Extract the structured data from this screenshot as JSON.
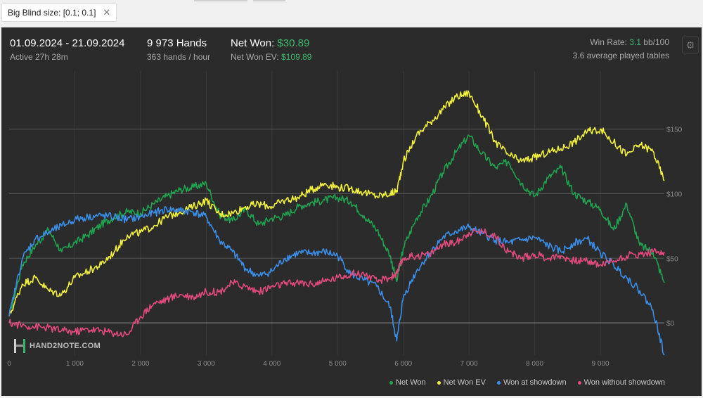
{
  "filter": {
    "chip_label": "Big Blind size: [0.1; 0.1]",
    "close_symbol": "✕"
  },
  "header": {
    "date_range": "01.09.2024 - 21.09.2024",
    "active": "Active 27h 28m",
    "hands": "9 973 Hands",
    "hands_per_hour": "363 hands / hour",
    "net_won_label": "Net Won:",
    "net_won_value": "$30.89",
    "net_won_ev_label": "Net Won  EV:",
    "net_won_ev_value": "$109.89",
    "win_rate_label": "Win Rate:",
    "win_rate_value": "3.1",
    "win_rate_unit": "bb/100",
    "tables": "3.6 average played tables"
  },
  "logo_text": "HAND2NOTE.COM",
  "icons": {
    "settings": "gear-icon",
    "close": "close-icon"
  },
  "colors": {
    "net_won": "#1fa24f",
    "net_won_ev": "#f2f23a",
    "won_at_showdown": "#3a8ee8",
    "won_without_showdown": "#e04a7c",
    "green_text": "#3db870"
  },
  "chart_data": {
    "type": "line",
    "xlim": [
      0,
      9973
    ],
    "ylim": [
      -25,
      195
    ],
    "x_ticks": [
      0,
      1000,
      2000,
      3000,
      4000,
      5000,
      6000,
      7000,
      8000,
      9000
    ],
    "x_tick_labels": [
      "0",
      "1 000",
      "2 000",
      "3 000",
      "4 000",
      "5 000",
      "6 000",
      "7 000",
      "8 000",
      "9 000"
    ],
    "y_ticks": [
      0,
      50,
      100,
      150
    ],
    "y_tick_labels": [
      "$0",
      "$50",
      "$100",
      "$150"
    ],
    "grid": true,
    "legend_position": "bottom-right",
    "series": [
      {
        "name": "Net Won",
        "key": "net_won",
        "x": [
          0,
          200,
          400,
          600,
          800,
          1000,
          1200,
          1400,
          1600,
          1800,
          2000,
          2200,
          2400,
          2600,
          2800,
          3000,
          3200,
          3400,
          3600,
          3800,
          4000,
          4200,
          4400,
          4600,
          4800,
          5000,
          5200,
          5400,
          5600,
          5800,
          5900,
          6000,
          6200,
          6400,
          6600,
          6800,
          7000,
          7200,
          7400,
          7600,
          7800,
          8000,
          8200,
          8400,
          8600,
          8800,
          9000,
          9200,
          9400,
          9600,
          9800,
          9973
        ],
        "values": [
          5,
          45,
          60,
          72,
          55,
          62,
          68,
          76,
          82,
          86,
          85,
          92,
          98,
          103,
          105,
          108,
          84,
          79,
          88,
          76,
          81,
          83,
          90,
          93,
          95,
          97,
          94,
          83,
          72,
          52,
          32,
          58,
          81,
          96,
          116,
          132,
          145,
          131,
          120,
          125,
          108,
          98,
          112,
          120,
          100,
          94,
          88,
          72,
          92,
          60,
          55,
          31
        ]
      },
      {
        "name": "Net Won  EV",
        "key": "net_won_ev",
        "x": [
          0,
          200,
          400,
          600,
          800,
          1000,
          1200,
          1400,
          1600,
          1800,
          2000,
          2200,
          2400,
          2600,
          2800,
          3000,
          3200,
          3400,
          3600,
          3800,
          4000,
          4200,
          4400,
          4600,
          4800,
          5000,
          5200,
          5400,
          5600,
          5800,
          5900,
          6000,
          6200,
          6400,
          6600,
          6800,
          7000,
          7200,
          7400,
          7600,
          7800,
          8000,
          8200,
          8400,
          8600,
          8800,
          9000,
          9200,
          9400,
          9600,
          9800,
          9973
        ],
        "values": [
          5,
          30,
          35,
          25,
          22,
          35,
          40,
          45,
          55,
          68,
          70,
          75,
          82,
          86,
          90,
          95,
          84,
          85,
          90,
          92,
          90,
          95,
          97,
          103,
          108,
          105,
          104,
          101,
          98,
          100,
          102,
          125,
          145,
          155,
          165,
          175,
          178,
          160,
          140,
          130,
          125,
          128,
          132,
          135,
          140,
          148,
          150,
          140,
          130,
          138,
          133,
          110
        ]
      },
      {
        "name": "Won at showdown",
        "key": "won_at_showdown",
        "x": [
          0,
          200,
          400,
          600,
          800,
          1000,
          1200,
          1400,
          1600,
          1800,
          2000,
          2200,
          2400,
          2600,
          2800,
          3000,
          3200,
          3400,
          3600,
          3800,
          4000,
          4200,
          4400,
          4600,
          4800,
          5000,
          5200,
          5400,
          5600,
          5800,
          5900,
          6000,
          6200,
          6400,
          6600,
          6800,
          7000,
          7200,
          7400,
          7600,
          7800,
          8000,
          8200,
          8400,
          8600,
          8800,
          9000,
          9200,
          9400,
          9600,
          9800,
          9973
        ],
        "values": [
          5,
          50,
          65,
          70,
          75,
          80,
          82,
          83,
          82,
          80,
          82,
          85,
          88,
          87,
          86,
          82,
          64,
          55,
          42,
          36,
          40,
          50,
          54,
          54,
          55,
          52,
          38,
          33,
          28,
          12,
          -14,
          20,
          40,
          54,
          66,
          71,
          74,
          69,
          64,
          62,
          64,
          66,
          60,
          55,
          62,
          65,
          54,
          45,
          35,
          25,
          10,
          -25
        ]
      },
      {
        "name": "Won without showdown",
        "key": "won_without_showdown",
        "x": [
          0,
          200,
          400,
          600,
          800,
          1000,
          1200,
          1400,
          1600,
          1800,
          2000,
          2200,
          2400,
          2600,
          2800,
          3000,
          3200,
          3400,
          3600,
          3800,
          4000,
          4200,
          4400,
          4600,
          4800,
          5000,
          5200,
          5400,
          5600,
          5800,
          5900,
          6000,
          6200,
          6400,
          6600,
          6800,
          7000,
          7200,
          7400,
          7600,
          7800,
          8000,
          8200,
          8400,
          8600,
          8800,
          9000,
          9200,
          9400,
          9600,
          9800,
          9973
        ],
        "values": [
          0,
          -2,
          -3,
          -4,
          -6,
          -7,
          -5,
          -6,
          -8,
          -9,
          5,
          15,
          18,
          22,
          20,
          24,
          24,
          31,
          28,
          24,
          28,
          30,
          31,
          30,
          32,
          35,
          38,
          38,
          32,
          35,
          38,
          50,
          52,
          53,
          61,
          62,
          70,
          71,
          67,
          55,
          50,
          53,
          50,
          52,
          48,
          48,
          45,
          48,
          52,
          53,
          55,
          55
        ]
      }
    ]
  }
}
